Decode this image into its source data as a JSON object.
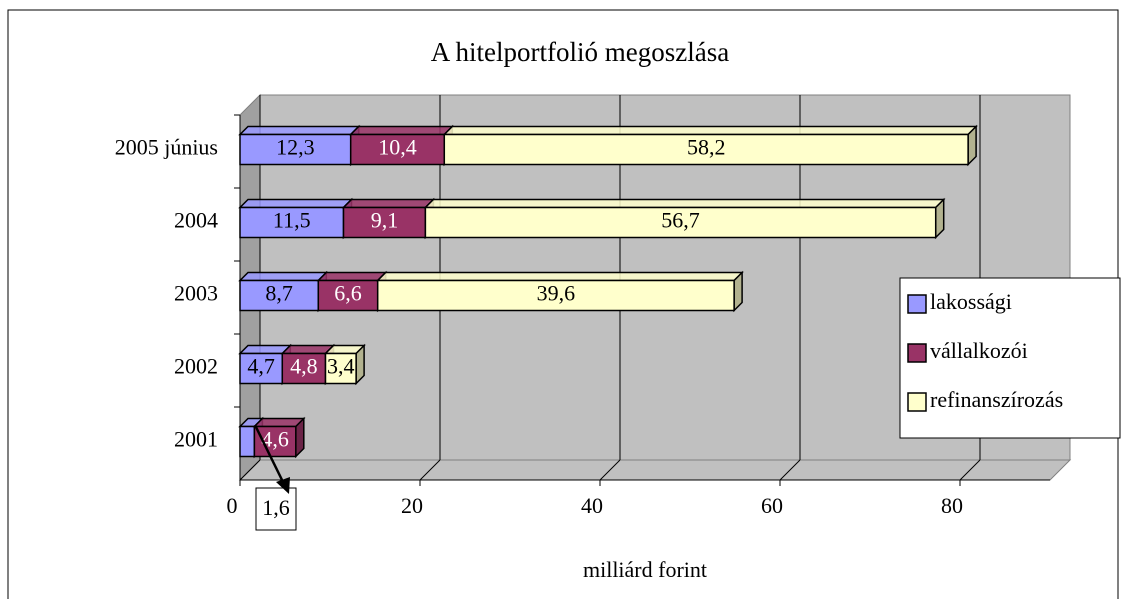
{
  "chart_data": {
    "type": "bar",
    "orientation": "horizontal",
    "stacked": true,
    "title": "A hitelportfolió megoszlása",
    "x_label": "milliárd forint",
    "categories": [
      "2005 június",
      "2004",
      "2003",
      "2002",
      "2001"
    ],
    "series": [
      {
        "name": "lakossági",
        "color": "#9999ff",
        "values": [
          12.3,
          11.5,
          8.7,
          4.7,
          1.6
        ],
        "value_labels": [
          "12,3",
          "11,5",
          "8,7",
          "4,7",
          "1,6"
        ]
      },
      {
        "name": "vállalkozói",
        "color": "#993366",
        "values": [
          10.4,
          9.1,
          6.6,
          4.8,
          4.6
        ],
        "value_labels": [
          "10,4",
          "9,1",
          "6,6",
          "4,8",
          "4,6"
        ]
      },
      {
        "name": "refinanszírozás",
        "color": "#ffffcc",
        "values": [
          58.2,
          56.7,
          39.6,
          3.4,
          null
        ],
        "value_labels": [
          "58,2",
          "56,7",
          "39,6",
          "3,4",
          null
        ]
      }
    ],
    "xlim": [
      0,
      90
    ],
    "xticks": [
      0,
      20,
      40,
      60,
      80
    ],
    "grid": true,
    "legend": "right"
  }
}
